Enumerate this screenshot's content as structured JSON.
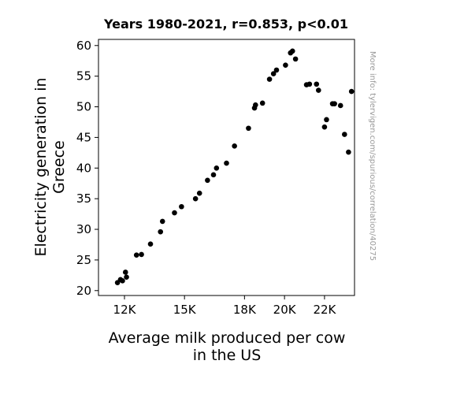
{
  "chart_data": {
    "type": "scatter",
    "title": "Years 1980-2021, r=0.853, p<0.01",
    "xlabel": [
      "Average milk produced per cow",
      "in the US"
    ],
    "ylabel": [
      "Electricity generation in",
      "Greece"
    ],
    "xlim": [
      10700,
      23500
    ],
    "ylim": [
      19.2,
      61
    ],
    "xticks": [
      {
        "value": 12000,
        "label": "12K"
      },
      {
        "value": 15000,
        "label": "15K"
      },
      {
        "value": 18000,
        "label": "18K"
      },
      {
        "value": 20000,
        "label": "20K"
      },
      {
        "value": 22000,
        "label": "22K"
      }
    ],
    "yticks": [
      20,
      25,
      30,
      35,
      40,
      45,
      50,
      55,
      60
    ],
    "grid": false,
    "marker_color": "#000000",
    "points": [
      [
        11650,
        21.3
      ],
      [
        11800,
        21.8
      ],
      [
        11900,
        21.6
      ],
      [
        12050,
        23.0
      ],
      [
        12100,
        22.2
      ],
      [
        12600,
        25.8
      ],
      [
        12850,
        25.9
      ],
      [
        13300,
        27.6
      ],
      [
        13800,
        29.6
      ],
      [
        13900,
        31.3
      ],
      [
        14500,
        32.7
      ],
      [
        14850,
        33.7
      ],
      [
        15550,
        35.0
      ],
      [
        15750,
        35.9
      ],
      [
        16150,
        38.0
      ],
      [
        16450,
        38.9
      ],
      [
        16600,
        40.0
      ],
      [
        17100,
        40.8
      ],
      [
        17500,
        43.6
      ],
      [
        18200,
        46.5
      ],
      [
        18500,
        49.8
      ],
      [
        18550,
        50.3
      ],
      [
        18900,
        50.6
      ],
      [
        19250,
        54.5
      ],
      [
        19450,
        55.4
      ],
      [
        19600,
        56.0
      ],
      [
        20050,
        56.8
      ],
      [
        20300,
        58.8
      ],
      [
        20400,
        59.1
      ],
      [
        20550,
        57.8
      ],
      [
        21100,
        53.6
      ],
      [
        21250,
        53.7
      ],
      [
        21600,
        53.7
      ],
      [
        21700,
        52.7
      ],
      [
        22000,
        46.7
      ],
      [
        22100,
        47.9
      ],
      [
        22400,
        50.5
      ],
      [
        22500,
        50.5
      ],
      [
        22800,
        50.2
      ],
      [
        23000,
        45.5
      ],
      [
        23200,
        42.6
      ],
      [
        23350,
        52.5
      ]
    ]
  },
  "watermark": "More info: tylervigen.com/spurious/correlation/40275"
}
